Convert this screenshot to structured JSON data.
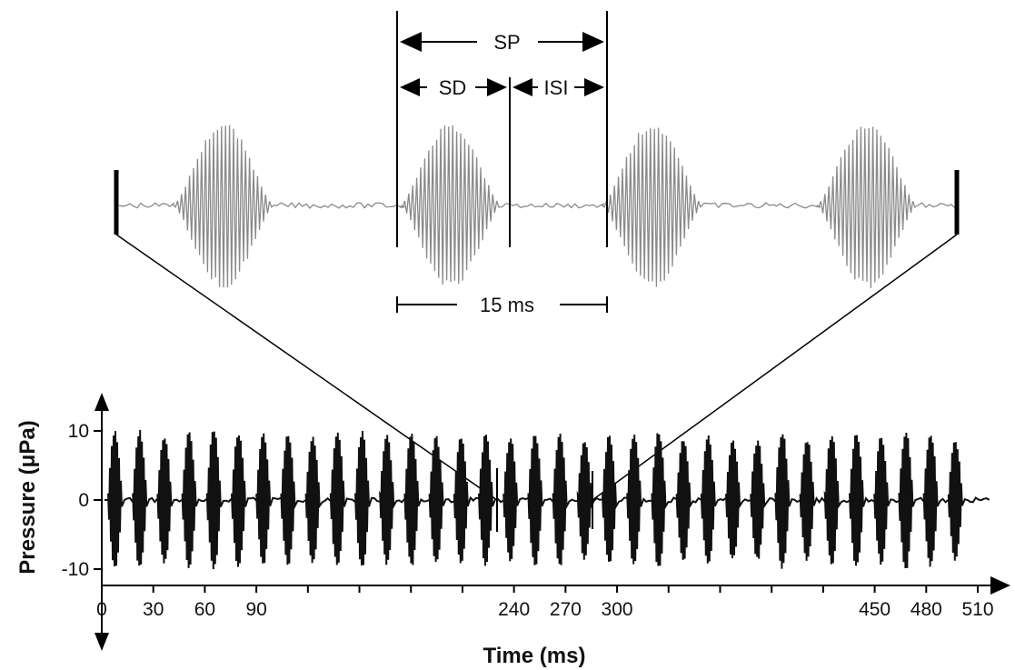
{
  "zoom": {
    "labels": {
      "sp": "SP",
      "sd": "SD",
      "isi": "ISI",
      "duration": "15 ms"
    }
  },
  "chart_data": {
    "type": "line",
    "xlabel": "Time (ms)",
    "ylabel": "Pressure (μPa)",
    "xlim": [
      0,
      510
    ],
    "ylim": [
      -10,
      10
    ],
    "x_ticks": [
      0,
      30,
      60,
      90,
      240,
      270,
      300,
      450,
      480,
      510
    ],
    "y_ticks": [
      10,
      0,
      -10
    ],
    "pulse_count": 35,
    "zoom_window_ms": [
      240,
      300
    ],
    "zoom_window_label": "15 ms"
  },
  "colors": {
    "trace": "#111111",
    "zoomTrace": "#8a8a8a",
    "line": "#000000"
  }
}
